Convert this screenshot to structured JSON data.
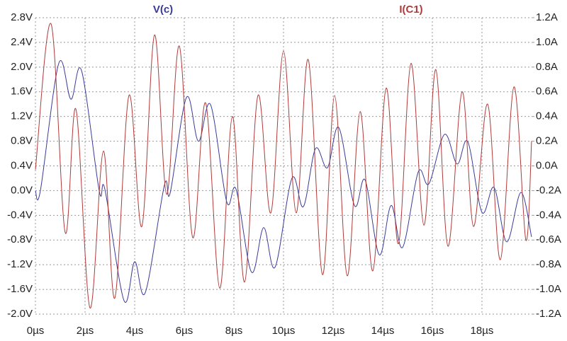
{
  "chart_data": {
    "type": "line",
    "xlim": [
      0,
      20
    ],
    "xticks": [
      {
        "value": 0,
        "label": "0µs"
      },
      {
        "value": 2,
        "label": "2µs"
      },
      {
        "value": 4,
        "label": "4µs"
      },
      {
        "value": 6,
        "label": "6µs"
      },
      {
        "value": 8,
        "label": "8µs"
      },
      {
        "value": 10,
        "label": "10µs"
      },
      {
        "value": 12,
        "label": "12µs"
      },
      {
        "value": 14,
        "label": "14µs"
      },
      {
        "value": 16,
        "label": "16µs"
      },
      {
        "value": 18,
        "label": "18µs"
      }
    ],
    "ylim": [
      -2.0,
      2.8
    ],
    "yticks": [
      {
        "value": 2.8,
        "label": "2.8V"
      },
      {
        "value": 2.4,
        "label": "2.4V"
      },
      {
        "value": 2.0,
        "label": "2.0V"
      },
      {
        "value": 1.6,
        "label": "1.6V"
      },
      {
        "value": 1.2,
        "label": "1.2V"
      },
      {
        "value": 0.8,
        "label": "0.8V"
      },
      {
        "value": 0.4,
        "label": "0.4V"
      },
      {
        "value": 0.0,
        "label": "0.0V"
      },
      {
        "value": -0.4,
        "label": "-0.4V"
      },
      {
        "value": -0.8,
        "label": "-0.8V"
      },
      {
        "value": -1.2,
        "label": "-1.2V"
      },
      {
        "value": -1.6,
        "label": "-1.6V"
      },
      {
        "value": -2.0,
        "label": "-2.0V"
      }
    ],
    "y2lim": [
      -1.2,
      1.2
    ],
    "y2ticks": [
      {
        "value": 1.2,
        "label": "1.2A"
      },
      {
        "value": 1.0,
        "label": "1.0A"
      },
      {
        "value": 0.8,
        "label": "0.8A"
      },
      {
        "value": 0.6,
        "label": "0.6A"
      },
      {
        "value": 0.4,
        "label": "0.4A"
      },
      {
        "value": 0.2,
        "label": "0.2A"
      },
      {
        "value": 0.0,
        "label": "0.0A"
      },
      {
        "value": -0.2,
        "label": "-0.2A"
      },
      {
        "value": -0.4,
        "label": "-0.4A"
      },
      {
        "value": -0.6,
        "label": "-0.6A"
      },
      {
        "value": -0.8,
        "label": "-0.8A"
      },
      {
        "value": -1.0,
        "label": "-1.0A"
      },
      {
        "value": -1.2,
        "label": "-1.2A"
      }
    ],
    "grid": true,
    "series": [
      {
        "name": "V(c)",
        "color": "#3a3a9a",
        "axis": "y",
        "x": [
          0,
          0.2,
          0.94,
          1.43,
          1.86,
          2.57,
          2.8,
          3.57,
          4.0,
          4.43,
          5.2,
          5.43,
          6.09,
          6.57,
          7.06,
          7.71,
          8.09,
          8.71,
          9.2,
          9.66,
          10.34,
          10.8,
          11.29,
          11.77,
          12.23,
          12.86,
          13.29,
          13.86,
          14.34,
          14.8,
          15.43,
          15.86,
          16.49,
          17.0,
          17.43,
          18.0,
          18.49,
          19.0,
          19.57,
          20
        ],
        "values": [
          0,
          0,
          2.06,
          1.48,
          1.94,
          0.0,
          0.02,
          -1.78,
          -1.15,
          -1.65,
          0.09,
          -0.04,
          1.51,
          0.8,
          1.39,
          -0.18,
          0.02,
          -1.32,
          -0.6,
          -1.24,
          0.2,
          -0.26,
          0.68,
          0.37,
          1.02,
          -0.24,
          0.17,
          -1.04,
          -0.24,
          -0.92,
          0.3,
          0.11,
          0.91,
          0.43,
          0.79,
          -0.35,
          0.05,
          -0.83,
          -0.03,
          -0.75
        ]
      },
      {
        "name": "I(C1)",
        "color": "#b03a3a",
        "axis": "y2",
        "x": [
          0,
          0.63,
          1.2,
          1.63,
          2.2,
          2.74,
          3.2,
          3.77,
          4.29,
          4.8,
          5.29,
          5.8,
          6.34,
          6.86,
          7.43,
          7.94,
          8.43,
          8.97,
          9.49,
          10.0,
          10.51,
          11.0,
          11.57,
          12.06,
          12.57,
          13.09,
          13.6,
          14.14,
          14.63,
          15.14,
          15.66,
          16.14,
          16.63,
          17.2,
          17.66,
          18.23,
          18.74,
          19.29,
          19.77,
          20
        ],
        "values": [
          -0.03,
          1.15,
          -0.54,
          0.46,
          -1.15,
          0.12,
          -1.07,
          0.57,
          -0.49,
          1.06,
          -0.23,
          0.97,
          -0.58,
          0.51,
          -0.99,
          0.4,
          -0.94,
          0.57,
          -0.38,
          0.93,
          -0.38,
          0.86,
          -0.88,
          0.57,
          -0.89,
          0.44,
          -0.85,
          0.63,
          -0.63,
          0.83,
          -0.48,
          0.78,
          -0.65,
          0.6,
          -0.49,
          0.5,
          -0.76,
          0.64,
          -0.6,
          0.2
        ]
      }
    ]
  }
}
